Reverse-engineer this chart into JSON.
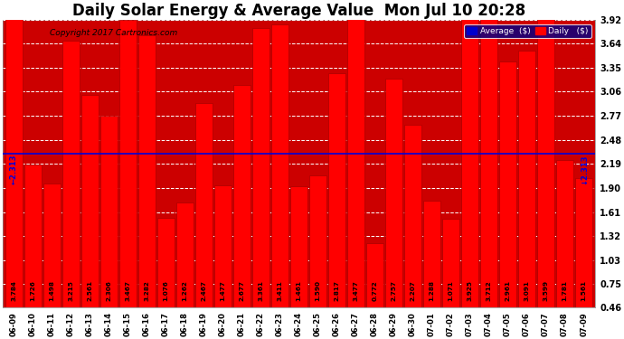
{
  "title": "Daily Solar Energy & Average Value  Mon Jul 10 20:28",
  "copyright": "Copyright 2017 Cartronics.com",
  "average_line": 2.313,
  "categories": [
    "06-09",
    "06-10",
    "06-11",
    "06-12",
    "06-13",
    "06-14",
    "06-15",
    "06-16",
    "06-17",
    "06-18",
    "06-19",
    "06-20",
    "06-21",
    "06-22",
    "06-23",
    "06-24",
    "06-25",
    "06-26",
    "06-27",
    "06-28",
    "06-29",
    "06-30",
    "07-01",
    "07-02",
    "07-03",
    "07-04",
    "07-05",
    "07-06",
    "07-07",
    "07-08",
    "07-09"
  ],
  "values": [
    3.784,
    1.726,
    1.498,
    3.215,
    2.561,
    2.306,
    3.467,
    3.282,
    1.076,
    1.262,
    2.467,
    1.477,
    2.677,
    3.361,
    3.411,
    1.461,
    1.59,
    2.817,
    3.477,
    0.772,
    2.757,
    2.207,
    1.288,
    1.071,
    3.925,
    3.712,
    2.961,
    3.091,
    3.599,
    1.781,
    1.561
  ],
  "bar_color": "#ff0000",
  "bar_edge_color": "#aa0000",
  "avg_line_color": "#0000dd",
  "background_color": "#ffffff",
  "plot_bg_color": "#cc0000",
  "grid_color": "#cccccc",
  "ylim": [
    0.46,
    3.92
  ],
  "yticks": [
    0.46,
    0.75,
    1.03,
    1.32,
    1.61,
    1.9,
    2.19,
    2.48,
    2.77,
    3.06,
    3.35,
    3.64,
    3.92
  ],
  "title_fontsize": 12,
  "legend_avg_color": "#0000cc",
  "legend_daily_color": "#ff0000",
  "avg_label": "Average  ($)",
  "daily_label": "Daily   ($)"
}
